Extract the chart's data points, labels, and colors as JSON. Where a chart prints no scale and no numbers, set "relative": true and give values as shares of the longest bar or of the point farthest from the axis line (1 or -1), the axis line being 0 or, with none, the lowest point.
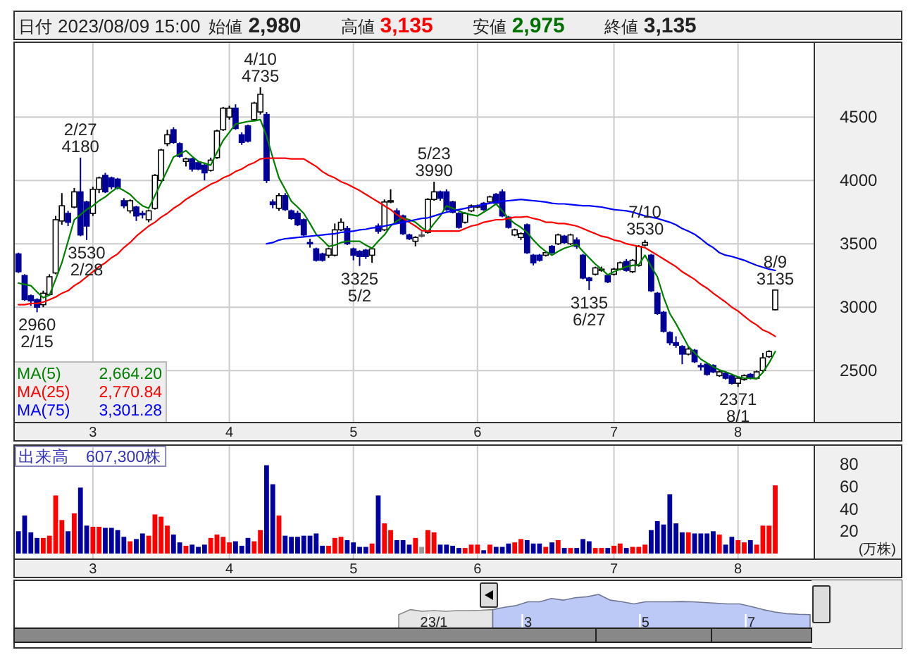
{
  "chart_data": [
    {
      "type": "other",
      "annotations": [
        "日付",
        "2023/08/09 15:00",
        "始値",
        "2,980",
        "高値",
        "3,135",
        "安値",
        "2,975",
        "終値",
        "3,135"
      ]
    },
    {
      "type": "candlestick",
      "categories": [
        null,
        null,
        null,
        null,
        null,
        null,
        null,
        null,
        null,
        null,
        null,
        null,
        "3",
        null,
        null,
        null,
        null,
        null,
        null,
        null,
        null,
        null,
        null,
        null,
        null,
        null,
        null,
        null,
        null,
        null,
        null,
        null,
        null,
        null,
        "4",
        null,
        null,
        null,
        null,
        null,
        null,
        null,
        null,
        null,
        null,
        null,
        null,
        null,
        null,
        null,
        null,
        null,
        null,
        null,
        "5",
        null,
        null,
        null,
        null,
        null,
        null,
        null,
        null,
        null,
        null,
        null,
        null,
        null,
        null,
        null,
        null,
        null,
        null,
        null,
        "6",
        null,
        null,
        null,
        null,
        null,
        null,
        null,
        null,
        null,
        null,
        null,
        null,
        null,
        null,
        null,
        null,
        null,
        null,
        null,
        null,
        null,
        "7",
        null,
        null,
        null,
        null,
        null,
        null,
        null,
        null,
        null,
        null,
        null,
        null,
        null,
        null,
        null,
        null,
        null,
        null,
        null,
        "8",
        null,
        null,
        null,
        null,
        null,
        null
      ],
      "ohlc": [
        [
          3420,
          3430,
          3270,
          3280
        ],
        [
          3250,
          3260,
          3050,
          3060
        ],
        [
          3090,
          3100,
          3010,
          3050
        ],
        [
          3060,
          3070,
          2960,
          3000
        ],
        [
          3020,
          3130,
          3000,
          3110
        ],
        [
          3100,
          3260,
          3090,
          3240
        ],
        [
          3270,
          3720,
          3260,
          3690
        ],
        [
          3680,
          3900,
          3650,
          3800
        ],
        [
          3740,
          3760,
          3640,
          3670
        ],
        [
          3790,
          3940,
          3780,
          3910
        ],
        [
          3910,
          4180,
          3560,
          3570
        ],
        [
          3830,
          3840,
          3530,
          3640
        ],
        [
          3740,
          3950,
          3720,
          3930
        ],
        [
          3930,
          4030,
          3900,
          4020
        ],
        [
          4040,
          4060,
          3900,
          3910
        ],
        [
          4020,
          4030,
          3930,
          3950
        ],
        [
          4010,
          4020,
          3930,
          3940
        ],
        [
          3840,
          3860,
          3780,
          3800
        ],
        [
          3760,
          3850,
          3740,
          3840
        ],
        [
          3790,
          3800,
          3680,
          3720
        ],
        [
          3740,
          3760,
          3700,
          3730
        ],
        [
          3690,
          3770,
          3670,
          3760
        ],
        [
          3780,
          4050,
          3770,
          4040
        ],
        [
          4000,
          4250,
          3990,
          4240
        ],
        [
          4290,
          4400,
          4270,
          4360
        ],
        [
          4400,
          4420,
          4290,
          4300
        ],
        [
          4290,
          4300,
          4180,
          4190
        ],
        [
          4150,
          4180,
          4110,
          4170
        ],
        [
          4170,
          4180,
          4070,
          4090
        ],
        [
          4140,
          4150,
          4080,
          4090
        ],
        [
          4120,
          4130,
          4000,
          4060
        ],
        [
          4080,
          4180,
          4070,
          4160
        ],
        [
          4180,
          4400,
          4170,
          4390
        ],
        [
          4400,
          4580,
          4390,
          4570
        ],
        [
          4500,
          4590,
          4480,
          4570
        ],
        [
          4570,
          4600,
          4400,
          4410
        ],
        [
          4360,
          4380,
          4280,
          4300
        ],
        [
          4430,
          4440,
          4300,
          4310
        ],
        [
          4480,
          4620,
          4470,
          4610
        ],
        [
          4540,
          4735,
          4520,
          4680
        ],
        [
          4520,
          4540,
          3980,
          4000
        ],
        [
          3830,
          3850,
          3780,
          3810
        ],
        [
          3780,
          3900,
          3760,
          3880
        ],
        [
          3880,
          3900,
          3760,
          3770
        ],
        [
          3760,
          3770,
          3690,
          3700
        ],
        [
          3740,
          3760,
          3640,
          3650
        ],
        [
          3690,
          3700,
          3560,
          3570
        ],
        [
          3510,
          3540,
          3470,
          3500
        ],
        [
          3460,
          3470,
          3360,
          3370
        ],
        [
          3420,
          3430,
          3360,
          3370
        ],
        [
          3410,
          3470,
          3390,
          3460
        ],
        [
          3410,
          3660,
          3400,
          3610
        ],
        [
          3610,
          3700,
          3600,
          3670
        ],
        [
          3620,
          3640,
          3490,
          3500
        ],
        [
          3460,
          3470,
          3370,
          3410
        ],
        [
          3440,
          3450,
          3325,
          3400
        ],
        [
          3450,
          3460,
          3380,
          3400
        ],
        [
          3410,
          3470,
          3350,
          3460
        ],
        [
          3640,
          3660,
          3580,
          3600
        ],
        [
          3610,
          3850,
          3600,
          3830
        ],
        [
          3830,
          3930,
          3820,
          3840
        ],
        [
          3760,
          3780,
          3660,
          3670
        ],
        [
          3720,
          3730,
          3570,
          3580
        ],
        [
          3570,
          3580,
          3530,
          3540
        ],
        [
          3520,
          3560,
          3480,
          3550
        ],
        [
          3570,
          3600,
          3550,
          3570
        ],
        [
          3590,
          3860,
          3580,
          3850
        ],
        [
          3850,
          3990,
          3840,
          3910
        ],
        [
          3910,
          3920,
          3840,
          3860
        ],
        [
          3910,
          3930,
          3760,
          3770
        ],
        [
          3830,
          3840,
          3740,
          3750
        ],
        [
          3740,
          3750,
          3620,
          3630
        ],
        [
          3670,
          3750,
          3660,
          3740
        ],
        [
          3760,
          3810,
          3750,
          3800
        ],
        [
          3790,
          3810,
          3780,
          3800
        ],
        [
          3820,
          3830,
          3760,
          3770
        ],
        [
          3830,
          3880,
          3820,
          3870
        ],
        [
          3890,
          3900,
          3810,
          3820
        ],
        [
          3910,
          3930,
          3710,
          3720
        ],
        [
          3710,
          3720,
          3620,
          3630
        ],
        [
          3570,
          3620,
          3560,
          3610
        ],
        [
          3550,
          3590,
          3530,
          3580
        ],
        [
          3650,
          3660,
          3420,
          3430
        ],
        [
          3410,
          3420,
          3330,
          3350
        ],
        [
          3410,
          3420,
          3360,
          3370
        ],
        [
          3410,
          3440,
          3400,
          3430
        ],
        [
          3480,
          3490,
          3420,
          3430
        ],
        [
          3500,
          3580,
          3490,
          3570
        ],
        [
          3560,
          3570,
          3500,
          3510
        ],
        [
          3500,
          3580,
          3490,
          3570
        ],
        [
          3530,
          3550,
          3460,
          3480
        ],
        [
          3410,
          3420,
          3220,
          3230
        ],
        [
          3230,
          3240,
          3135,
          3210
        ],
        [
          3260,
          3320,
          3250,
          3310
        ],
        [
          3290,
          3320,
          3280,
          3300
        ],
        [
          3250,
          3260,
          3190,
          3200
        ],
        [
          3260,
          3310,
          3250,
          3300
        ],
        [
          3300,
          3360,
          3290,
          3350
        ],
        [
          3360,
          3380,
          3280,
          3290
        ],
        [
          3280,
          3380,
          3270,
          3370
        ],
        [
          3330,
          3490,
          3320,
          3480
        ],
        [
          3490,
          3530,
          3480,
          3510
        ],
        [
          3410,
          3420,
          3120,
          3130
        ],
        [
          3110,
          3120,
          2940,
          2950
        ],
        [
          2960,
          2970,
          2800,
          2810
        ],
        [
          2800,
          2810,
          2700,
          2720
        ],
        [
          2720,
          2770,
          2680,
          2700
        ],
        [
          2690,
          2700,
          2550,
          2630
        ],
        [
          2630,
          2690,
          2620,
          2670
        ],
        [
          2660,
          2670,
          2560,
          2570
        ],
        [
          2540,
          2560,
          2500,
          2530
        ],
        [
          2550,
          2560,
          2460,
          2470
        ],
        [
          2540,
          2550,
          2480,
          2490
        ],
        [
          2460,
          2500,
          2450,
          2490
        ],
        [
          2480,
          2490,
          2430,
          2440
        ],
        [
          2460,
          2470,
          2390,
          2400
        ],
        [
          2400,
          2450,
          2371,
          2440
        ],
        [
          2430,
          2470,
          2420,
          2460
        ],
        [
          2470,
          2480,
          2430,
          2440
        ],
        [
          2440,
          2500,
          2430,
          2490
        ],
        [
          2500,
          2640,
          2490,
          2600
        ],
        [
          2610,
          2660,
          2600,
          2650
        ],
        [
          2980,
          3135,
          2975,
          3135
        ]
      ],
      "series": [
        {
          "name": "MA(5)",
          "type": "line",
          "color": "#008000",
          "values": [
            3190,
            3180,
            3170,
            3120,
            3075,
            3095,
            3220,
            3350,
            3520,
            3690,
            3730,
            3770,
            3800,
            3840,
            3870,
            3910,
            3945,
            3920,
            3890,
            3840,
            3800,
            3780,
            3880,
            3980,
            4080,
            4185,
            4210,
            4235,
            4190,
            4150,
            4135,
            4120,
            4220,
            4315,
            4380,
            4445,
            4455,
            4465,
            4470,
            4480,
            4350,
            4180,
            4020,
            3930,
            3835,
            3790,
            3740,
            3660,
            3575,
            3530,
            3480,
            3490,
            3510,
            3520,
            3520,
            3520,
            3490,
            3465,
            3520,
            3570,
            3640,
            3680,
            3705,
            3690,
            3670,
            3630,
            3595,
            3660,
            3720,
            3800,
            3780,
            3760,
            3740,
            3730,
            3720,
            3750,
            3780,
            3815,
            3760,
            3700,
            3660,
            3630,
            3590,
            3530,
            3480,
            3440,
            3410,
            3440,
            3465,
            3480,
            3495,
            3440,
            3390,
            3340,
            3300,
            3255,
            3280,
            3300,
            3320,
            3330,
            3335,
            3410,
            3320,
            3240,
            3080,
            2950,
            2870,
            2780,
            2690,
            2640,
            2590,
            2560,
            2530,
            2505,
            2490,
            2470,
            2450,
            2440,
            2440,
            2435,
            2485,
            2560,
            2650
          ]
        },
        {
          "name": "MA(25)",
          "type": "line",
          "color": "#ff0000",
          "values": [
            3020,
            3020,
            3030,
            3030,
            3040,
            3060,
            3080,
            3110,
            3130,
            3170,
            3200,
            3240,
            3280,
            3320,
            3350,
            3390,
            3420,
            3470,
            3510,
            3560,
            3600,
            3640,
            3670,
            3710,
            3740,
            3780,
            3810,
            3850,
            3880,
            3910,
            3940,
            3970,
            3990,
            4020,
            4040,
            4070,
            4090,
            4120,
            4140,
            4170,
            4175,
            4175,
            4175,
            4175,
            4170,
            4170,
            4170,
            4140,
            4110,
            4070,
            4040,
            4020,
            3990,
            3970,
            3945,
            3920,
            3890,
            3860,
            3830,
            3800,
            3770,
            3730,
            3700,
            3670,
            3640,
            3605,
            3600,
            3600,
            3600,
            3600,
            3600,
            3600,
            3620,
            3640,
            3650,
            3670,
            3680,
            3690,
            3690,
            3700,
            3710,
            3710,
            3715,
            3700,
            3690,
            3670,
            3670,
            3660,
            3660,
            3650,
            3640,
            3620,
            3600,
            3580,
            3560,
            3550,
            3530,
            3520,
            3500,
            3490,
            3480,
            3470,
            3440,
            3410,
            3380,
            3350,
            3320,
            3280,
            3250,
            3220,
            3180,
            3150,
            3110,
            3075,
            3040,
            3000,
            2970,
            2930,
            2890,
            2860,
            2820,
            2800,
            2770
          ]
        },
        {
          "name": "MA(75)",
          "type": "line",
          "color": "#0000ff",
          "values": [
            null,
            null,
            null,
            null,
            null,
            null,
            null,
            null,
            null,
            null,
            null,
            null,
            null,
            null,
            null,
            null,
            null,
            null,
            null,
            null,
            null,
            null,
            null,
            null,
            null,
            null,
            null,
            null,
            null,
            null,
            null,
            null,
            null,
            null,
            null,
            null,
            null,
            null,
            null,
            null,
            3500,
            3510,
            3530,
            3540,
            3545,
            3550,
            3555,
            3560,
            3565,
            3570,
            3575,
            3580,
            3590,
            3595,
            3600,
            3610,
            3615,
            3625,
            3630,
            3640,
            3650,
            3660,
            3670,
            3680,
            3690,
            3700,
            3705,
            3720,
            3735,
            3750,
            3760,
            3770,
            3780,
            3790,
            3800,
            3810,
            3820,
            3830,
            3835,
            3840,
            3845,
            3850,
            3845,
            3840,
            3835,
            3830,
            3820,
            3815,
            3815,
            3810,
            3805,
            3800,
            3800,
            3795,
            3790,
            3780,
            3770,
            3765,
            3760,
            3750,
            3735,
            3720,
            3710,
            3700,
            3685,
            3670,
            3650,
            3620,
            3600,
            3575,
            3540,
            3500,
            3470,
            3430,
            3410,
            3400,
            3385,
            3370,
            3350,
            3330,
            3315,
            3300,
            3290
          ]
        }
      ],
      "ylim": [
        2090,
        5090
      ],
      "yticks": [
        2500,
        3000,
        3500,
        4000,
        4500
      ],
      "grid": true,
      "legend": "bottom left",
      "annotations": [
        "2,664.20",
        "2,770.84",
        "3,301.28",
        {
          "text": "2960\n2/15",
          "y": 2960
        },
        {
          "text": "2/27\n4180",
          "y": 4180
        },
        {
          "text": "3530\n2/28",
          "y": 3530
        },
        {
          "text": "4/10\n4735",
          "y": 4735
        },
        {
          "text": "3325\n5/2",
          "y": 3325
        },
        {
          "text": "5/23\n3990",
          "y": 3990
        },
        {
          "text": "3135\n6/27",
          "y": 3135
        },
        {
          "text": "7/10\n3530",
          "y": 3530
        },
        {
          "text": "2371\n8/1",
          "y": 2371
        },
        {
          "text": "8/9\n3135",
          "y": 3135
        }
      ]
    },
    {
      "type": "bar",
      "title": "出来高　607,300株",
      "ylabel": "(万株)",
      "categories": [
        null,
        null,
        null,
        null,
        null,
        null,
        null,
        null,
        null,
        null,
        null,
        null,
        "3",
        null,
        null,
        null,
        null,
        null,
        null,
        null,
        null,
        null,
        null,
        null,
        null,
        null,
        null,
        null,
        null,
        null,
        null,
        null,
        null,
        null,
        "4",
        null,
        null,
        null,
        null,
        null,
        null,
        null,
        null,
        null,
        null,
        null,
        null,
        null,
        null,
        null,
        null,
        null,
        null,
        null,
        "5",
        null,
        null,
        null,
        null,
        null,
        null,
        null,
        null,
        null,
        null,
        null,
        null,
        null,
        null,
        null,
        null,
        null,
        null,
        null,
        "6",
        null,
        null,
        null,
        null,
        null,
        null,
        null,
        null,
        null,
        null,
        null,
        null,
        null,
        null,
        null,
        null,
        null,
        null,
        null,
        null,
        null,
        "7",
        null,
        null,
        null,
        null,
        null,
        null,
        null,
        null,
        null,
        null,
        null,
        null,
        null,
        null,
        null,
        null,
        null,
        null,
        null,
        "8",
        null,
        null,
        null,
        null,
        null,
        null
      ],
      "values": [
        20,
        34,
        19,
        14,
        14,
        16,
        52,
        30,
        20,
        36,
        59,
        25,
        24,
        24,
        23,
        23,
        21,
        15,
        11,
        13,
        18,
        16,
        35,
        33,
        25,
        17,
        10,
        7,
        8,
        6,
        8,
        14,
        17,
        15,
        10,
        11,
        7,
        14,
        11,
        21,
        79,
        62,
        34,
        16,
        15,
        15,
        16,
        16,
        18,
        7,
        7,
        14,
        15,
        12,
        10,
        6,
        6,
        9,
        52,
        27,
        21,
        12,
        12,
        8,
        14,
        6,
        21,
        19,
        8,
        8,
        7,
        5,
        5,
        8,
        8,
        3,
        8,
        6,
        6,
        9,
        10,
        13,
        12,
        9,
        9,
        6,
        10,
        12,
        5,
        5,
        5,
        13,
        11,
        5,
        5,
        5,
        7,
        9,
        5,
        6,
        6,
        8,
        21,
        29,
        26,
        53,
        27,
        19,
        19,
        18,
        18,
        18,
        20,
        17,
        8,
        15,
        12,
        10,
        12,
        8,
        25,
        25,
        61
      ],
      "colors": [
        "#0000a0",
        "#0000a0",
        "#0000a0",
        "#0000a0",
        "#ff0000",
        "#ff0000",
        "#ff0000",
        "#ff0000",
        "#0000a0",
        "#ff0000",
        "#0000a0",
        "#0000a0",
        "#ff0000",
        "#ff0000",
        "#0000a0",
        "#0000a0",
        "#0000a0",
        "#0000a0",
        "#ff0000",
        "#0000a0",
        "#0000a0",
        "#ff0000",
        "#ff0000",
        "#ff0000",
        "#ff0000",
        "#0000a0",
        "#0000a0",
        "#ff0000",
        "#0000a0",
        "#0000a0",
        "#0000a0",
        "#ff0000",
        "#ff0000",
        "#ff0000",
        "#ff0000",
        "#0000a0",
        "#0000a0",
        "#0000a0",
        "#ff0000",
        "#ff0000",
        "#0000a0",
        "#0000a0",
        "#ff0000",
        "#0000a0",
        "#0000a0",
        "#0000a0",
        "#0000a0",
        "#0000a0",
        "#0000a0",
        "#0000a0",
        "#ff0000",
        "#ff0000",
        "#ff0000",
        "#0000a0",
        "#0000a0",
        "#0000a0",
        "#0000a0",
        "#ff0000",
        "#0000a0",
        "#ff0000",
        "#ff0000",
        "#0000a0",
        "#0000a0",
        "#0000a0",
        "#ff0000",
        "#999999",
        "#ff0000",
        "#ff0000",
        "#0000a0",
        "#0000a0",
        "#0000a0",
        "#0000a0",
        "#ff0000",
        "#ff0000",
        "#ff0000",
        "#0000a0",
        "#ff0000",
        "#0000a0",
        "#0000a0",
        "#0000a0",
        "#ff0000",
        "#ff0000",
        "#0000a0",
        "#0000a0",
        "#0000a0",
        "#ff0000",
        "#0000a0",
        "#ff0000",
        "#0000a0",
        "#ff0000",
        "#0000a0",
        "#0000a0",
        "#0000a0",
        "#ff0000",
        "#ff0000",
        "#0000a0",
        "#ff0000",
        "#ff0000",
        "#0000a0",
        "#ff0000",
        "#ff0000",
        "#ff0000",
        "#0000a0",
        "#0000a0",
        "#0000a0",
        "#0000a0",
        "#0000a0",
        "#0000a0",
        "#ff0000",
        "#0000a0",
        "#0000a0",
        "#0000a0",
        "#0000a0",
        "#ff0000",
        "#0000a0",
        "#0000a0",
        "#ff0000",
        "#ff0000",
        "#0000a0",
        "#ff0000",
        "#ff0000",
        "#ff0000",
        "#ff0000"
      ],
      "ylim": [
        -5,
        97
      ],
      "yticks": [
        20,
        40,
        60,
        80
      ],
      "grid": "x"
    },
    {
      "type": "area",
      "relative": true,
      "categories": [
        null,
        null,
        null,
        "23/1",
        null,
        null,
        null,
        null,
        null,
        null,
        null,
        "3",
        null,
        null,
        null,
        null,
        null,
        null,
        null,
        null,
        null,
        "5",
        null,
        null,
        null,
        null,
        null,
        null,
        null,
        null,
        "7",
        null,
        null,
        null,
        null,
        null
      ],
      "series": [
        {
          "color": "#e6e6e6",
          "values": [
            0.4,
            0.55,
            0.5,
            0.52,
            0.5,
            0.52,
            0.52,
            0.53,
            0.55,
            null,
            null,
            null,
            null,
            null,
            null,
            null,
            null,
            null,
            null,
            null,
            null,
            null,
            null,
            null,
            null,
            null,
            null,
            null,
            null,
            null,
            null,
            null,
            null,
            null,
            null,
            null
          ]
        },
        {
          "color": "#bcc8f5",
          "values": [
            null,
            null,
            null,
            null,
            null,
            null,
            null,
            null,
            0.55,
            0.62,
            0.67,
            0.78,
            0.78,
            0.88,
            0.83,
            0.9,
            0.93,
            1.0,
            0.83,
            0.78,
            0.72,
            0.78,
            0.78,
            0.78,
            0.79,
            0.78,
            0.76,
            0.74,
            0.72,
            0.72,
            0.64,
            0.55,
            0.48,
            0.43,
            0.41,
            0.4
          ]
        }
      ]
    }
  ]
}
